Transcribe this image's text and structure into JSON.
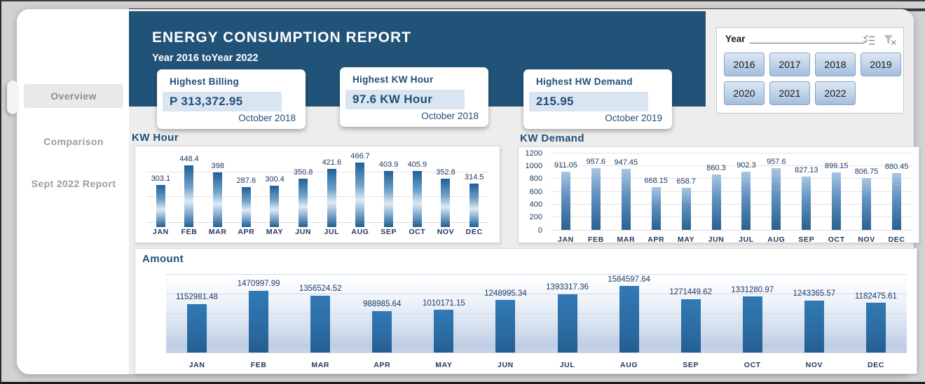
{
  "header": {
    "title": "ENERGY CONSUMPTION REPORT",
    "subtitle": "Year 2016 toYear 2022"
  },
  "sidebar": {
    "items": [
      {
        "label": "Overview",
        "active": true
      },
      {
        "label": "Comparison",
        "active": false
      },
      {
        "label": "Sept 2022 Report",
        "active": false
      }
    ]
  },
  "kpis": [
    {
      "title": "Highest Billing",
      "value": "P 313,372.95",
      "date": "October 2018"
    },
    {
      "title": "Highest KW Hour",
      "value": "97.6 KW Hour",
      "date": "October 2018"
    },
    {
      "title": "Highest HW Demand",
      "value": "215.95",
      "date": "October 2019"
    }
  ],
  "slicer": {
    "title": "Year",
    "icons": [
      "select-all-icon",
      "clear-filter-icon"
    ],
    "years": [
      "2016",
      "2017",
      "2018",
      "2019",
      "2020",
      "2021",
      "2022"
    ]
  },
  "chart_data": [
    {
      "type": "bar",
      "title": "KW Hour",
      "categories": [
        "JAN",
        "FEB",
        "MAR",
        "APR",
        "MAY",
        "JUN",
        "JUL",
        "AUG",
        "SEP",
        "OCT",
        "NOV",
        "DEC"
      ],
      "values": [
        303.1,
        448.4,
        398,
        287.6,
        300.4,
        350.8,
        421.6,
        466.7,
        403.9,
        405.9,
        352.8,
        314.5
      ],
      "labels": [
        "303.1",
        "448.4",
        "398",
        "287.6",
        "300.4",
        "350.8",
        "421.6",
        "466.7",
        "403.9",
        "405.9",
        "352.8",
        "314.5"
      ],
      "ylim": null,
      "yticks": null,
      "grid": true,
      "data_labels": true,
      "xlabel": "",
      "ylabel": ""
    },
    {
      "type": "bar",
      "title": "KW Demand",
      "categories": [
        "JAN",
        "FEB",
        "MAR",
        "APR",
        "MAY",
        "JUN",
        "JUL",
        "AUG",
        "SEP",
        "OCT",
        "NOV",
        "DEC"
      ],
      "values": [
        911.05,
        957.6,
        947.45,
        668.15,
        658.7,
        860.3,
        902.3,
        957.6,
        827.13,
        899.15,
        806.75,
        880.45
      ],
      "labels": [
        "911.05",
        "957.6",
        "947.45",
        "668.15",
        "658.7",
        "860.3",
        "902.3",
        "957.6",
        "827.13",
        "899.15",
        "806.75",
        "880.45"
      ],
      "ylim": [
        0,
        1200
      ],
      "yticks": [
        0,
        200,
        400,
        600,
        800,
        1000,
        1200
      ],
      "grid": true,
      "data_labels": true,
      "xlabel": "",
      "ylabel": ""
    },
    {
      "type": "bar",
      "title": "Amount",
      "categories": [
        "JAN",
        "FEB",
        "MAR",
        "APR",
        "MAY",
        "JUN",
        "JUL",
        "AUG",
        "SEP",
        "OCT",
        "NOV",
        "DEC"
      ],
      "values": [
        1152981.48,
        1470997.99,
        1356524.52,
        988985.64,
        1010171.15,
        1248995.34,
        1393317.36,
        1584597.64,
        1271449.62,
        1331280.97,
        1243365.57,
        1182475.61
      ],
      "labels": [
        "1152981.48",
        "1470997.99",
        "1356524.52",
        "988985.64",
        "1010171.15",
        "1248995.34",
        "1393317.36",
        "1584597.64",
        "1271449.62",
        "1331280.97",
        "1243365.57",
        "1182475.61"
      ],
      "ylim": null,
      "yticks": null,
      "grid": true,
      "data_labels": true,
      "xlabel": "",
      "ylabel": ""
    }
  ],
  "colors": {
    "header_blue": "#215378",
    "accent_navy": "#1f4e79",
    "label_navy": "#1f3864",
    "kpi_highlight": "#d9e5f1",
    "bar_blue": "#2e74b0",
    "page_bg": "#d2d2d2"
  }
}
